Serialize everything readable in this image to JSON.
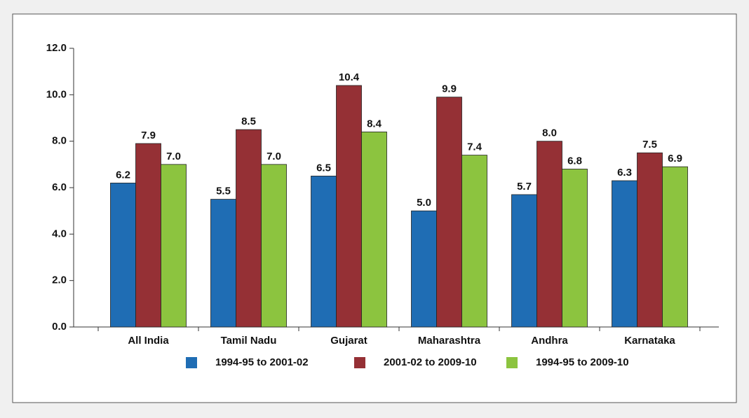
{
  "chart_data": {
    "type": "bar",
    "categories": [
      "All India",
      "Tamil Nadu",
      "Gujarat",
      "Maharashtra",
      "Andhra",
      "Karnataka"
    ],
    "series": [
      {
        "name": "1994-95 to 2001-02",
        "color": "#1f6db4",
        "values": [
          6.2,
          5.5,
          6.5,
          5.0,
          5.7,
          6.3
        ],
        "value_labels": [
          "6.2",
          "5.5",
          "6.5",
          "5.0",
          "5.7",
          "6.3"
        ]
      },
      {
        "name": "2001-02 to 2009-10",
        "color": "#953035",
        "values": [
          7.9,
          8.5,
          10.4,
          9.9,
          8.0,
          7.5
        ],
        "value_labels": [
          "7.9",
          "8.5",
          "10.4",
          "9.9",
          "8.0",
          "7.5"
        ]
      },
      {
        "name": "1994-95 to 2009-10",
        "color": "#8cc43f",
        "values": [
          7.0,
          7.0,
          8.4,
          7.4,
          6.8,
          6.9
        ],
        "value_labels": [
          "7.0",
          "7.0",
          "8.4",
          "7.4",
          "6.8",
          "6.9"
        ]
      }
    ],
    "ylim": [
      0,
      12
    ],
    "yticks": [
      {
        "value": 0,
        "label": "0.0"
      },
      {
        "value": 2,
        "label": "2.0"
      },
      {
        "value": 4,
        "label": "4.0"
      },
      {
        "value": 6,
        "label": "6.0"
      },
      {
        "value": 8,
        "label": "8.0"
      },
      {
        "value": 10,
        "label": "10.0"
      },
      {
        "value": 12,
        "label": "12.0"
      }
    ],
    "legend": "bottom"
  }
}
